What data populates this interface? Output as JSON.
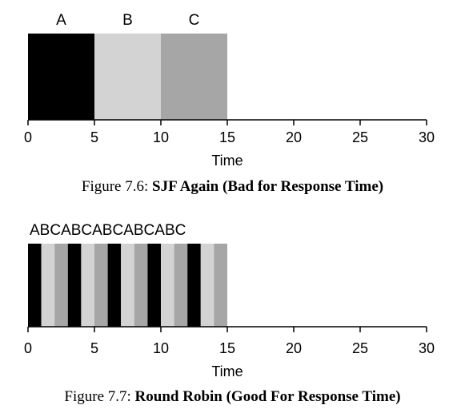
{
  "colors": {
    "A": "#000000",
    "B": "#d3d3d3",
    "C": "#a6a6a6"
  },
  "figures": [
    {
      "caption_prefix": "Figure 7.6: ",
      "caption_title": "SJF Again (Bad for Response Time)",
      "top_labels": [
        "A",
        "B",
        "C"
      ],
      "xlabel": "Time",
      "x_ticks": [
        "0",
        "5",
        "10",
        "15",
        "20",
        "25",
        "30"
      ]
    },
    {
      "caption_prefix": "Figure 7.7: ",
      "caption_title": "Round Robin (Good For Response Time)",
      "top_label_text": "ABCABCABCABCABC",
      "xlabel": "Time",
      "x_ticks": [
        "0",
        "5",
        "10",
        "15",
        "20",
        "25",
        "30"
      ]
    }
  ],
  "chart_data": [
    {
      "type": "bar",
      "xlabel": "Time",
      "xlim": [
        0,
        30
      ],
      "segments": [
        {
          "job": "A",
          "start": 0,
          "end": 5
        },
        {
          "job": "B",
          "start": 5,
          "end": 10
        },
        {
          "job": "C",
          "start": 10,
          "end": 15
        }
      ]
    },
    {
      "type": "bar",
      "xlabel": "Time",
      "xlim": [
        0,
        30
      ],
      "segments": [
        {
          "job": "A",
          "start": 0,
          "end": 1
        },
        {
          "job": "B",
          "start": 1,
          "end": 2
        },
        {
          "job": "C",
          "start": 2,
          "end": 3
        },
        {
          "job": "A",
          "start": 3,
          "end": 4
        },
        {
          "job": "B",
          "start": 4,
          "end": 5
        },
        {
          "job": "C",
          "start": 5,
          "end": 6
        },
        {
          "job": "A",
          "start": 6,
          "end": 7
        },
        {
          "job": "B",
          "start": 7,
          "end": 8
        },
        {
          "job": "C",
          "start": 8,
          "end": 9
        },
        {
          "job": "A",
          "start": 9,
          "end": 10
        },
        {
          "job": "B",
          "start": 10,
          "end": 11
        },
        {
          "job": "C",
          "start": 11,
          "end": 12
        },
        {
          "job": "A",
          "start": 12,
          "end": 13
        },
        {
          "job": "B",
          "start": 13,
          "end": 14
        },
        {
          "job": "C",
          "start": 14,
          "end": 15
        }
      ]
    }
  ]
}
